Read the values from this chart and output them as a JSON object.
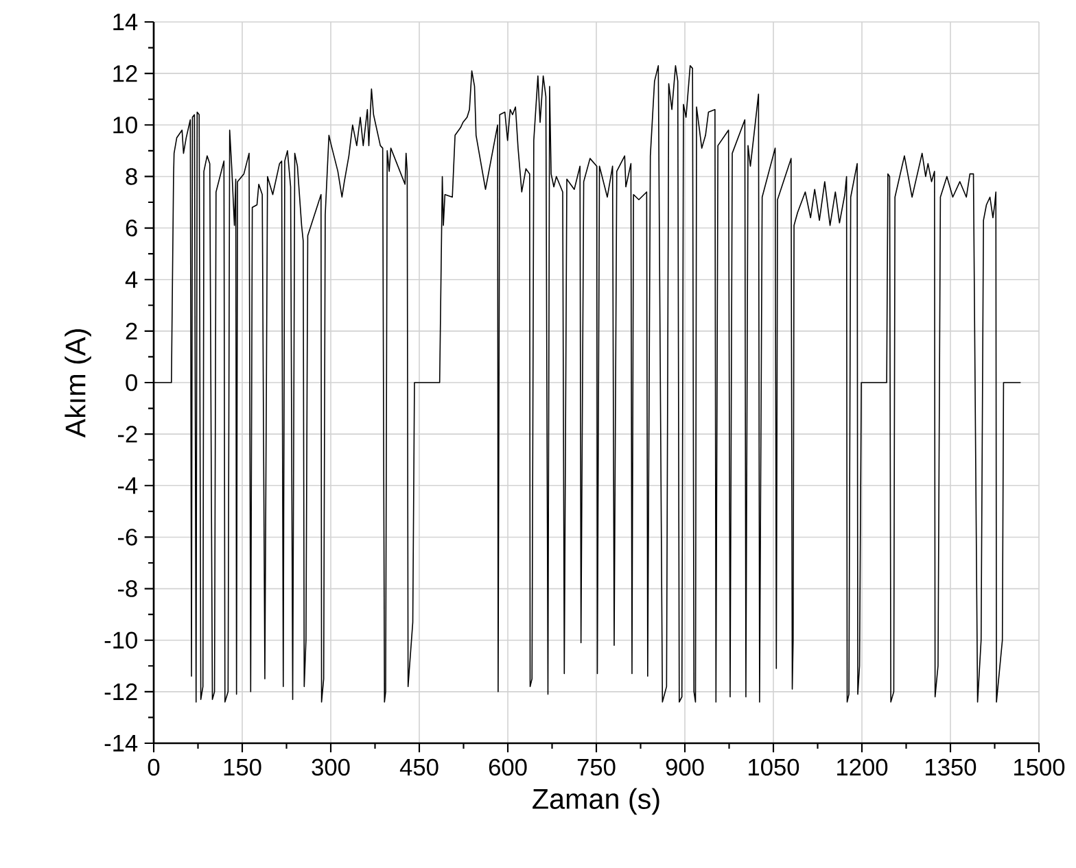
{
  "chart_data": {
    "type": "line",
    "xlabel": "Zaman (s)",
    "ylabel": "Akım (A)",
    "grid": true,
    "line_style": "solid",
    "marker": "none",
    "xlim": [
      0,
      1500
    ],
    "ylim": [
      -14,
      14
    ],
    "xticks": [
      0,
      150,
      300,
      450,
      600,
      750,
      900,
      1050,
      1200,
      1350,
      1500
    ],
    "yticks": [
      -14,
      -12,
      -10,
      -8,
      -6,
      -4,
      -2,
      0,
      2,
      4,
      6,
      8,
      10,
      12,
      14
    ],
    "series": [
      {
        "color": "#000000",
        "x": [
          0,
          30,
          33.6,
          34.5,
          39,
          48,
          50.5,
          55,
          62,
          64,
          65.6,
          69,
          71.8,
          73.6,
          77,
          79.8,
          83.4,
          85,
          90.5,
          95,
          99.4,
          103,
          105.6,
          119,
          120.7,
          126,
          128.7,
          132.3,
          136.7,
          139,
          140.3,
          142,
          152.8,
          161.6,
          164.3,
          167,
          175,
          178,
          183.9,
          188.3,
          192.8,
          201.7,
          213.2,
          216.8,
          219.5,
          222,
          226.6,
          232,
          235.5,
          239,
          243.5,
          250.6,
          253.3,
          255,
          258,
          261,
          283.5,
          284.4,
          288,
          290.6,
          296.9,
          301,
          312,
          319,
          323,
          330.7,
          337,
          344,
          350,
          355,
          362,
          364.5,
          369,
          372.5,
          384,
          388,
          391,
          393,
          395.6,
          399,
          401.8,
          425.8,
          427.6,
          429.5,
          431,
          439,
          441.8,
          484.5,
          489,
          490.8,
          493.4,
          506,
          510.6,
          520,
          524,
          531,
          535,
          539,
          543.6,
          546.2,
          562.2,
          582.7,
          583.6,
          586.3,
          595,
          599.6,
          604,
          608,
          613,
          617.4,
          623.6,
          630.7,
          637,
          637.8,
          641,
          644,
          651,
          654.7,
          660,
          664.5,
          668,
          670.8,
          673.4,
          678,
          682.3,
          693,
          695.7,
          700,
          712.6,
          722.3,
          724,
          728.6,
          739.3,
          750.8,
          751.7,
          755.3,
          768.6,
          777.5,
          780.2,
          784.6,
          798,
          800,
          808.6,
          810.4,
          813,
          822,
          835.3,
          837,
          841.5,
          848.6,
          855,
          862,
          869,
          872.7,
          878,
          884.2,
          888,
          890.5,
          895,
          897.6,
          902,
          909,
          913,
          915.4,
          918,
          919.8,
          928.7,
          935,
          940,
          951,
          952.7,
          956,
          974,
          976.7,
          980.3,
          1001.6,
          1003.4,
          1007,
          1011,
          1017,
          1024.8,
          1026.6,
          1031,
          1053,
          1055,
          1057,
          1080,
          1082,
          1083.5,
          1085,
          1091,
          1104,
          1113,
          1120,
          1128,
          1137,
          1146,
          1155,
          1162,
          1171,
          1174,
          1175,
          1178,
          1181,
          1192,
          1193,
          1196,
          1199,
          1242,
          1244,
          1247,
          1249,
          1254,
          1256,
          1272,
          1285,
          1293,
          1302,
          1308,
          1312,
          1318,
          1323,
          1324,
          1329,
          1333,
          1344,
          1354,
          1366,
          1377,
          1383,
          1389,
          1396,
          1402,
          1406,
          1411,
          1417,
          1422,
          1425,
          1427,
          1428,
          1438,
          1440,
          1469
        ],
        "values": [
          0,
          0,
          8.0,
          8.9,
          9.5,
          9.8,
          8.9,
          9.5,
          10.2,
          -11.4,
          10.3,
          10.4,
          -12.4,
          10.5,
          10.4,
          -12.3,
          -11.8,
          8.2,
          8.8,
          8.5,
          -12.3,
          -12.0,
          7.4,
          8.6,
          -12.4,
          -12.0,
          9.8,
          8.3,
          6.1,
          7.9,
          -12.1,
          7.8,
          8.1,
          8.9,
          -12.0,
          6.8,
          6.9,
          7.7,
          7.3,
          -11.5,
          8.0,
          7.3,
          8.5,
          8.6,
          -11.8,
          8.6,
          9.0,
          7.6,
          -12.3,
          8.9,
          8.4,
          6.1,
          5.5,
          -11.8,
          -10.0,
          5.7,
          7.3,
          -12.4,
          -11.5,
          6.5,
          9.6,
          9.2,
          8.2,
          7.2,
          7.8,
          8.8,
          10.0,
          9.2,
          10.3,
          9.2,
          10.6,
          9.2,
          11.4,
          10.4,
          9.2,
          9.1,
          -12.4,
          -12.0,
          9.0,
          8.2,
          9.1,
          7.7,
          8.9,
          8.2,
          -11.8,
          -9.3,
          0,
          0,
          8.0,
          6.1,
          7.3,
          7.2,
          9.6,
          9.9,
          10.1,
          10.3,
          10.6,
          12.1,
          11.5,
          9.6,
          7.5,
          10.0,
          -12.0,
          10.4,
          10.5,
          9.4,
          10.6,
          10.4,
          10.7,
          9.1,
          7.4,
          8.3,
          8.1,
          -11.8,
          -11.5,
          9.4,
          11.9,
          10.1,
          11.9,
          11.1,
          -12.1,
          11.5,
          8.1,
          7.6,
          8.0,
          7.4,
          -11.3,
          7.9,
          7.5,
          8.4,
          -10.1,
          7.8,
          8.7,
          8.4,
          -11.3,
          8.4,
          7.2,
          8.4,
          -10.2,
          8.2,
          8.8,
          7.6,
          8.5,
          -11.3,
          7.3,
          7.1,
          7.4,
          -11.4,
          8.8,
          11.7,
          12.3,
          -12.4,
          -11.8,
          11.6,
          10.6,
          12.3,
          11.7,
          -12.4,
          -12.2,
          10.8,
          10.3,
          12.3,
          12.2,
          -12.0,
          -12.4,
          10.7,
          9.1,
          9.6,
          10.5,
          10.6,
          -12.4,
          9.2,
          9.8,
          -12.2,
          8.9,
          10.2,
          -12.2,
          9.2,
          8.4,
          9.6,
          11.2,
          -12.4,
          7.2,
          9.1,
          -11.1,
          7.1,
          8.7,
          -11.9,
          -10.0,
          6.1,
          6.6,
          7.4,
          6.4,
          7.5,
          6.3,
          7.8,
          6.1,
          7.4,
          6.2,
          7.3,
          8.0,
          -12.4,
          -12.1,
          7.2,
          8.5,
          -12.1,
          -11.0,
          0,
          0,
          8.1,
          8.0,
          -12.4,
          -12.0,
          7.2,
          8.8,
          7.2,
          8.0,
          8.9,
          8.0,
          8.5,
          7.8,
          8.2,
          -12.2,
          -11.0,
          7.2,
          8.0,
          7.2,
          7.8,
          7.2,
          8.1,
          8.1,
          -12.4,
          -10.0,
          6.3,
          6.9,
          7.2,
          6.4,
          6.9,
          7.4,
          -12.4,
          -10.0,
          0,
          0
        ]
      }
    ]
  }
}
